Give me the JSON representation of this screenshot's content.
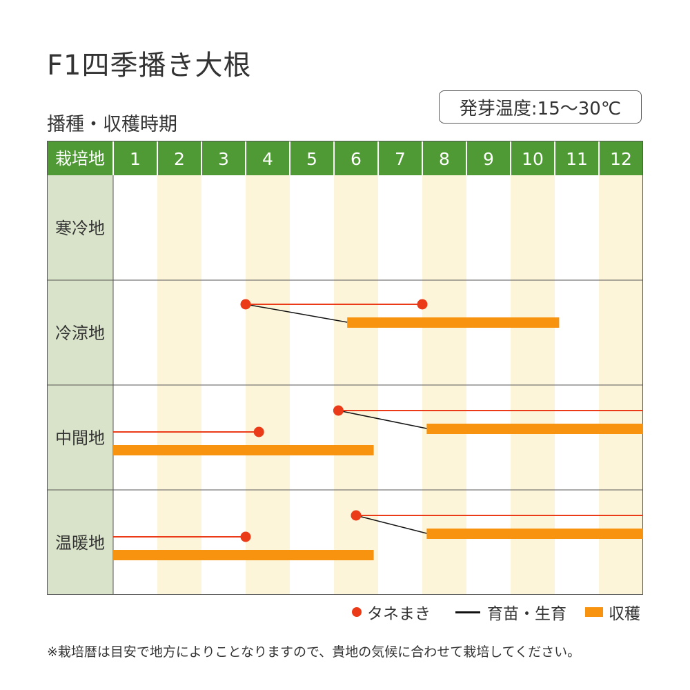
{
  "title": "F1四季播き大根",
  "subtitle": "播種・収穫時期",
  "temperature_note": "発芽温度:15～30℃",
  "colors": {
    "header_green": "#4f9a35",
    "region_column": "#d9e3c9",
    "alt_month": "#fdf5da",
    "sowing_dot": "#ea3a17",
    "sowing_line": "#ea3a17",
    "growing_line": "#111111",
    "harvest_bar": "#f7930e"
  },
  "legend": {
    "sowing": "タネまき",
    "growing": "育苗・生育",
    "harvest": "収穫"
  },
  "footnote": "※栽培暦は目安で地方によりことなりますので、貴地の気候に合わせて栽培してください。",
  "chart_data": {
    "type": "gantt",
    "header_label": "栽培地",
    "months": [
      "1",
      "2",
      "3",
      "4",
      "5",
      "6",
      "7",
      "8",
      "9",
      "10",
      "11",
      "12"
    ],
    "regions": [
      {
        "name": "寒冷地",
        "sowing": [],
        "growing": [],
        "harvest": []
      },
      {
        "name": "冷涼地",
        "sowing": [
          {
            "start": 4.0,
            "end": 8.0,
            "dot": "start",
            "dot_end": true
          }
        ],
        "growing": [
          {
            "from": 4.0,
            "to": 6.3
          }
        ],
        "harvest": [
          {
            "start": 6.3,
            "end": 11.1
          }
        ]
      },
      {
        "name": "中間地",
        "sowing": [
          {
            "start": 6.1,
            "end": 13.0,
            "dot": "start"
          },
          {
            "start": 1.0,
            "end": 4.3,
            "dot": "end"
          }
        ],
        "growing": [
          {
            "from": 6.1,
            "to": 8.1
          }
        ],
        "harvest": [
          {
            "start": 8.1,
            "end": 13.0
          },
          {
            "start": 1.0,
            "end": 6.9
          }
        ]
      },
      {
        "name": "温暖地",
        "sowing": [
          {
            "start": 6.5,
            "end": 13.0,
            "dot": "start"
          },
          {
            "start": 1.0,
            "end": 4.0,
            "dot": "end"
          }
        ],
        "growing": [
          {
            "from": 6.5,
            "to": 8.1
          }
        ],
        "harvest": [
          {
            "start": 8.1,
            "end": 13.0
          },
          {
            "start": 1.0,
            "end": 6.9
          }
        ]
      }
    ]
  }
}
